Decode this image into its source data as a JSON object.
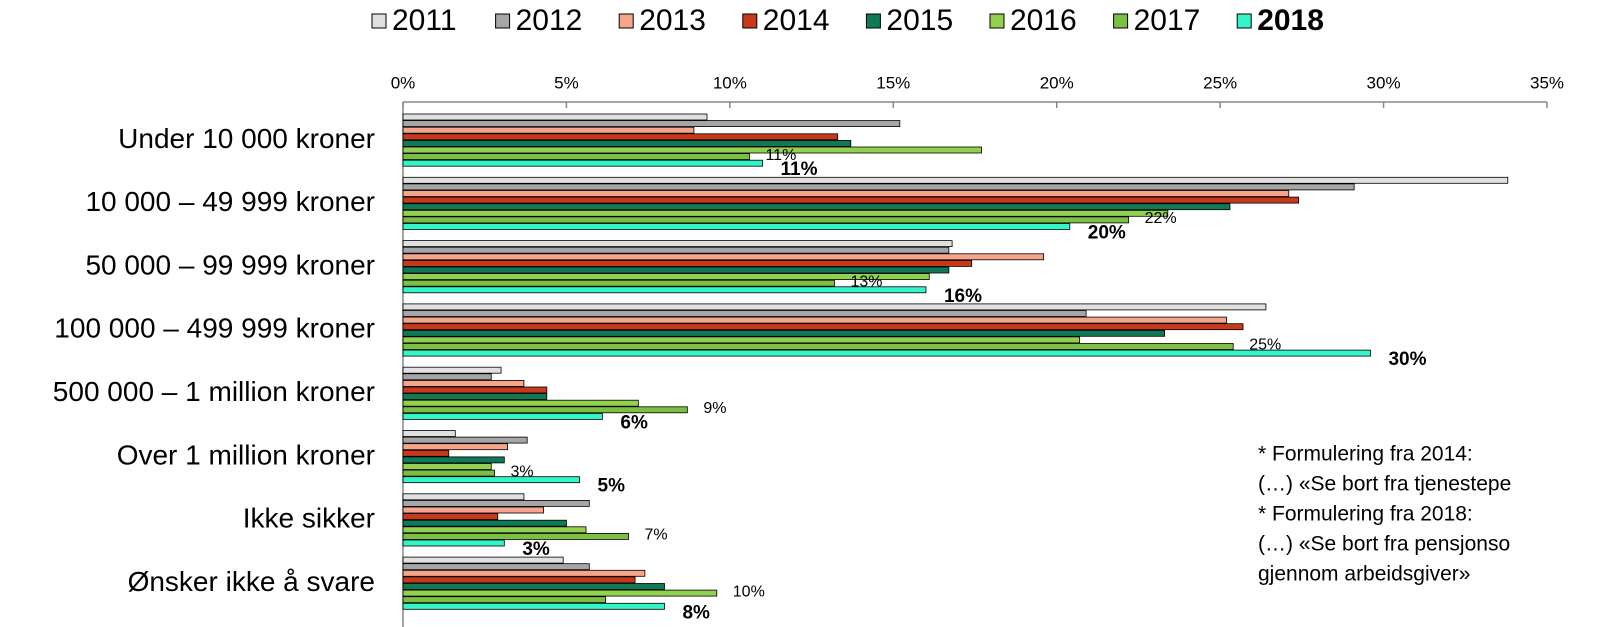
{
  "chart_data": {
    "type": "bar",
    "orientation": "horizontal",
    "categories": [
      "Under 10 000 kroner",
      "10 000 – 49 999 kroner",
      "50 000 – 99 999 kroner",
      "100 000 – 499 999 kroner",
      "500 000 – 1 million kroner",
      "Over 1 million kroner",
      "Ikke sikker",
      "Ønsker ikke å svare"
    ],
    "series": [
      {
        "name": "2011",
        "color": "#e0e0e0",
        "values": [
          9.3,
          33.8,
          16.8,
          26.4,
          3.0,
          1.6,
          3.7,
          4.9
        ]
      },
      {
        "name": "2012",
        "color": "#a6a6a6",
        "values": [
          15.2,
          29.1,
          16.7,
          20.9,
          2.7,
          3.8,
          5.7,
          5.7
        ]
      },
      {
        "name": "2013",
        "color": "#f4a58a",
        "values": [
          8.9,
          27.1,
          19.6,
          25.2,
          3.7,
          3.2,
          4.3,
          7.4
        ]
      },
      {
        "name": "2014",
        "color": "#c8381a",
        "values": [
          13.3,
          27.4,
          17.4,
          25.7,
          4.4,
          1.4,
          2.9,
          7.1
        ]
      },
      {
        "name": "2015",
        "color": "#0f7a55",
        "values": [
          13.7,
          25.3,
          16.7,
          23.3,
          4.4,
          3.1,
          5.0,
          8.0
        ]
      },
      {
        "name": "2016",
        "color": "#92d050",
        "values": [
          17.7,
          23.4,
          16.1,
          20.7,
          7.2,
          2.7,
          5.6,
          9.6
        ],
        "value_labels": [
          null,
          null,
          null,
          null,
          null,
          null,
          null,
          "10%"
        ]
      },
      {
        "name": "2017",
        "color": "#7cc043",
        "values": [
          10.6,
          22.2,
          13.2,
          25.4,
          8.7,
          2.8,
          6.9,
          6.2
        ],
        "value_labels": [
          "11%",
          "22%",
          "13%",
          "25%",
          "9%",
          "3%",
          "7%",
          null
        ]
      },
      {
        "name": "2018",
        "color": "#33f5c8",
        "values": [
          11.0,
          20.4,
          16.0,
          29.6,
          6.1,
          5.4,
          3.1,
          8.0
        ],
        "value_labels": [
          "11%",
          "20%",
          "16%",
          "30%",
          "6%",
          "5%",
          "3%",
          "8%"
        ],
        "bold": true
      }
    ],
    "xlim": [
      0,
      35
    ],
    "xticks": [
      {
        "value": 0,
        "label": "0%"
      },
      {
        "value": 5,
        "label": "5%"
      },
      {
        "value": 10,
        "label": "10%"
      },
      {
        "value": 15,
        "label": "15%"
      },
      {
        "value": 20,
        "label": "20%"
      },
      {
        "value": 25,
        "label": "25%"
      },
      {
        "value": 30,
        "label": "30%"
      },
      {
        "value": 35,
        "label": "35%"
      }
    ],
    "legend": "top",
    "annotations": [
      "* Formulering fra 2014:",
      "(…) «Se bort fra tjenestepe",
      "* Formulering fra 2018:",
      "(…) «Se bort fra pensjonso",
      "gjennom arbeidsgiver»"
    ]
  }
}
